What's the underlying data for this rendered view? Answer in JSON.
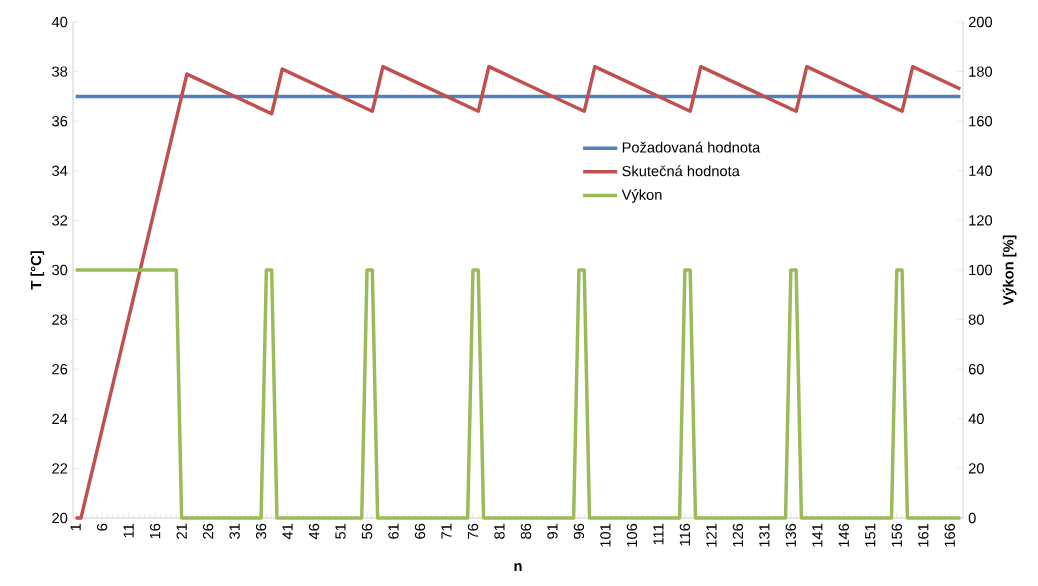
{
  "chart_data": {
    "type": "line",
    "xlabel": "n",
    "ylabel": "T [°C]",
    "y2label": "Výkon [%]",
    "xlim": [
      0.5,
      168.5
    ],
    "xticks": [
      1,
      6,
      11,
      16,
      21,
      26,
      31,
      36,
      41,
      46,
      51,
      56,
      61,
      66,
      71,
      76,
      81,
      86,
      91,
      96,
      101,
      106,
      111,
      116,
      121,
      126,
      131,
      136,
      141,
      146,
      151,
      156,
      161,
      166
    ],
    "ylim": [
      20,
      40
    ],
    "yticks": [
      20,
      22,
      24,
      26,
      28,
      30,
      32,
      34,
      36,
      38,
      40
    ],
    "y2lim": [
      0,
      200
    ],
    "y2ticks": [
      0,
      20,
      40,
      60,
      80,
      100,
      120,
      140,
      160,
      180,
      200
    ],
    "legend": "top right",
    "grid": false,
    "marker": "none",
    "line_style": "solid",
    "series": [
      {
        "name": "Požadovaná hodnota",
        "color": "#4f81bd",
        "x": [
          1,
          168
        ],
        "values": [
          37,
          37
        ]
      },
      {
        "name": "Skutečná hodnota",
        "color": "#c0504d",
        "x": [
          1,
          2,
          22,
          38,
          40,
          57,
          59,
          77,
          79,
          97,
          99,
          117,
          119,
          137,
          139,
          157,
          159,
          168
        ],
        "values": [
          20,
          20,
          37.9,
          36.3,
          38.1,
          36.4,
          38.2,
          36.4,
          38.2,
          36.4,
          38.2,
          36.4,
          38.2,
          36.4,
          38.2,
          36.4,
          38.2,
          37.3
        ]
      },
      {
        "name": "Výkon",
        "color": "#9bbb59",
        "axis": "y2",
        "x": [
          1,
          20,
          21,
          36,
          37,
          38,
          39,
          55,
          56,
          57,
          58,
          75,
          76,
          77,
          78,
          95,
          96,
          97,
          98,
          115,
          116,
          117,
          118,
          135,
          136,
          137,
          138,
          155,
          156,
          157,
          158,
          168
        ],
        "values": [
          100,
          100,
          0,
          0,
          100,
          100,
          0,
          0,
          100,
          100,
          0,
          0,
          100,
          100,
          0,
          0,
          100,
          100,
          0,
          0,
          100,
          100,
          0,
          0,
          100,
          100,
          0,
          0,
          100,
          100,
          0,
          0
        ]
      }
    ]
  }
}
